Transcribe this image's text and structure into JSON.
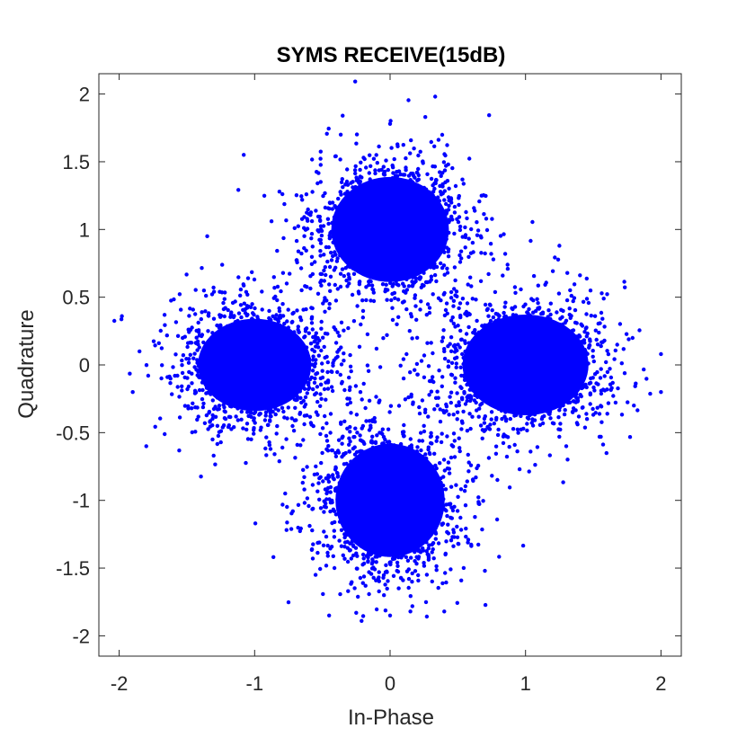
{
  "chart_data": {
    "type": "scatter",
    "title": "SYMS RECEIVE(15dB)",
    "xlabel": "In-Phase",
    "ylabel": "Quadrature",
    "xlim": [
      -2.15,
      2.15
    ],
    "ylim": [
      -2.15,
      2.15
    ],
    "xticks": [
      -2,
      -1,
      0,
      1,
      2
    ],
    "xtick_labels": [
      "-2",
      "-1",
      "0",
      "1",
      "2"
    ],
    "yticks": [
      -2,
      -1.5,
      -1,
      -0.5,
      0,
      0.5,
      1,
      1.5,
      2
    ],
    "ytick_labels": [
      "-2",
      "-1.5",
      "-1",
      "-0.5",
      "0",
      "0.5",
      "1",
      "1.5",
      "2"
    ],
    "grid": false,
    "marker_color": "#0000ff",
    "series": [
      {
        "clusters": [
          {
            "center": [
              0.0,
              1.0
            ],
            "spread": [
              0.28,
              0.25
            ]
          },
          {
            "center": [
              -1.0,
              0.0
            ],
            "spread": [
              0.27,
              0.22
            ]
          },
          {
            "center": [
              1.0,
              0.0
            ],
            "spread": [
              0.3,
              0.24
            ]
          },
          {
            "center": [
              0.0,
              -1.0
            ],
            "spread": [
              0.26,
              0.27
            ]
          }
        ],
        "outliers": [
          [
            -1.98,
            0.36
          ],
          [
            -1.9,
            -0.2
          ],
          [
            -1.8,
            -0.6
          ],
          [
            -1.85,
            0.1
          ],
          [
            -1.35,
            0.95
          ],
          [
            -0.35,
            1.84
          ],
          [
            0.26,
            1.83
          ],
          [
            0.0,
            1.78
          ],
          [
            2.0,
            0.08
          ],
          [
            2.0,
            -0.2
          ],
          [
            0.0,
            -1.85
          ],
          [
            -0.45,
            -1.85
          ],
          [
            0.4,
            -1.82
          ],
          [
            -0.55,
            -1.55
          ],
          [
            0.7,
            -1.52
          ],
          [
            1.25,
            0.88
          ],
          [
            1.8,
            -0.3
          ],
          [
            -0.25,
            -1.83
          ],
          [
            0.15,
            -1.82
          ],
          [
            0.85,
            0.82
          ],
          [
            -0.1,
            0.12
          ],
          [
            0.1,
            -0.1
          ],
          [
            0.2,
            0.2
          ],
          [
            -0.3,
            -0.25
          ],
          [
            0.35,
            -0.3
          ],
          [
            -0.2,
            0.35
          ],
          [
            0.05,
            0.3
          ],
          [
            -0.4,
            0.05
          ],
          [
            0.4,
            0.1
          ],
          [
            0.25,
            -0.45
          ]
        ]
      }
    ]
  }
}
